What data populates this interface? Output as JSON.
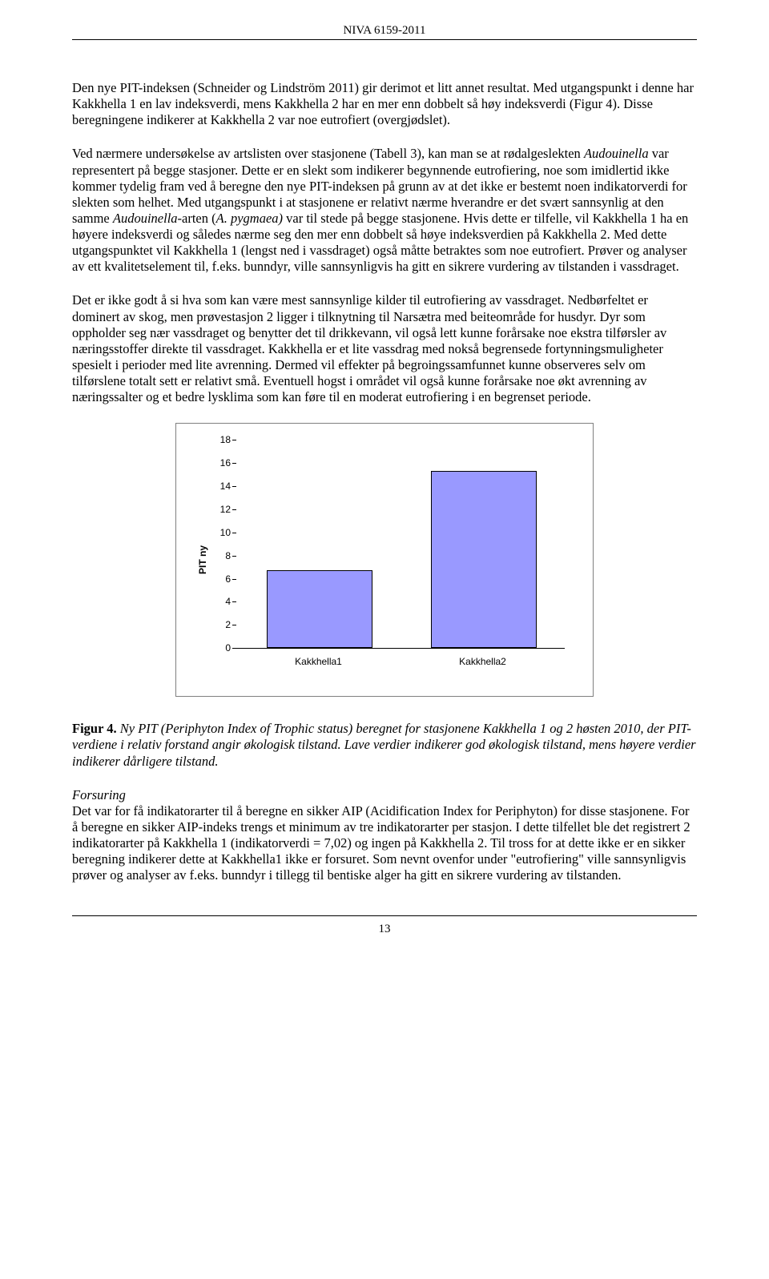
{
  "header": "NIVA 6159-2011",
  "paragraphs": {
    "p1": "Den nye PIT-indeksen (Schneider og Lindström 2011) gir derimot et litt annet resultat. Med utgangspunkt i denne har Kakkhella 1 en lav indeksverdi, mens Kakkhella 2 har en mer enn dobbelt så høy indeksverdi (Figur 4). Disse beregningene indikerer at Kakkhella 2 var noe eutrofiert (overgjødslet).",
    "p2a": "Ved nærmere undersøkelse av artslisten over stasjonene (Tabell 3), kan man se at rødalgeslekten ",
    "p2b": "Audouinella",
    "p2c": " var representert på begge stasjoner. Dette er en slekt som indikerer begynnende eutrofiering, noe som imidlertid ikke kommer tydelig fram ved å beregne den nye PIT-indeksen på grunn av at det ikke er bestemt noen indikatorverdi for slekten som helhet. Med utgangspunkt i at stasjonene er relativt nærme hverandre er det svært sannsynlig at den samme ",
    "p2d": "Audouinella",
    "p2e": "-arten (",
    "p2f": "A. pygmaea)",
    "p2g": " var til stede på begge stasjonene. Hvis dette er tilfelle, vil Kakkhella 1 ha en høyere indeksverdi og således nærme seg den mer enn dobbelt så høye indeksverdien på Kakkhella 2. Med dette utgangspunktet vil Kakkhella 1 (lengst ned i vassdraget) også måtte betraktes som noe eutrofiert. Prøver og analyser av ett kvalitetselement til, f.eks. bunndyr, ville sannsynligvis ha gitt en sikrere vurdering av tilstanden i vassdraget.",
    "p3": "Det er ikke godt å si hva som kan være mest sannsynlige kilder til eutrofiering av vassdraget. Nedbørfeltet er dominert av skog, men prøvestasjon 2 ligger i tilknytning til Narsætra med beiteområde for husdyr. Dyr som oppholder seg nær vassdraget og benytter det til drikkevann, vil også lett kunne forårsake noe ekstra tilførsler av næringsstoffer direkte til vassdraget. Kakkhella er et lite vassdrag med nokså begrensede fortynningsmuligheter spesielt i perioder med lite avrenning. Dermed vil effekter på begroingssamfunnet kunne observeres selv om tilførslene totalt sett er relativt små. Eventuell hogst i området vil også kunne forårsake noe økt avrenning av næringssalter og et bedre lysklima som kan føre til en moderat eutrofiering i en begrenset periode."
  },
  "chart": {
    "type": "bar",
    "ylabel": "PIT ny",
    "categories": [
      "Kakkhella1",
      "Kakkhella2"
    ],
    "values": [
      6.6,
      15.2
    ],
    "bar_color": "#9999ff",
    "bar_border": "#000000",
    "ylim": [
      0,
      18
    ],
    "ytick_step": 2,
    "yticks": [
      "0",
      "2",
      "4",
      "6",
      "8",
      "10",
      "12",
      "14",
      "16",
      "18"
    ],
    "background": "#ffffff",
    "border_color": "#808080"
  },
  "caption": {
    "label": "Figur 4.",
    "text": " Ny PIT (Periphyton Index of Trophic status) beregnet for stasjonene Kakkhella 1 og 2 høsten 2010, der PIT-verdiene i relativ forstand angir økologisk tilstand. Lave verdier indikerer god økologisk tilstand, mens høyere verdier indikerer dårligere tilstand."
  },
  "section": {
    "title": "Forsuring",
    "body": "Det var for få indikatorarter til å beregne en sikker AIP (Acidification Index for Periphyton) for disse stasjonene. For å beregne en sikker AIP-indeks trengs et minimum av tre indikatorarter per stasjon. I dette tilfellet ble det registrert 2 indikatorarter på Kakkhella 1 (indikatorverdi = 7,02) og ingen på Kakkhella 2. Til tross for at dette ikke er en sikker beregning indikerer dette at Kakkhella1 ikke er forsuret. Som nevnt ovenfor under \"eutrofiering\" ville sannsynligvis prøver og analyser av f.eks. bunndyr i tillegg til bentiske alger ha gitt en sikrere vurdering av tilstanden."
  },
  "page_number": "13"
}
